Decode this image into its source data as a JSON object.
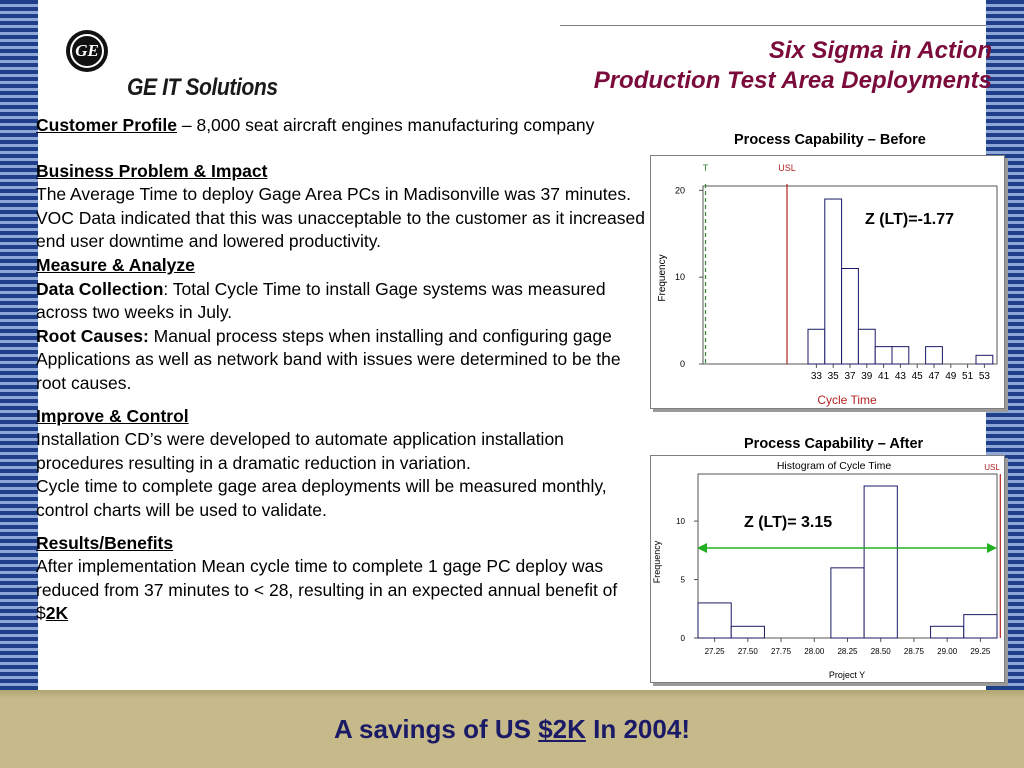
{
  "brand": "GE IT Solutions",
  "logo_text": "GE",
  "title": {
    "line1": "Six Sigma in Action",
    "line2": "Production Test Area Deployments"
  },
  "customer_profile": {
    "heading": "Customer Profile",
    "text": " – 8,000 seat aircraft engines manufacturing company"
  },
  "business_problem": {
    "heading": "Business Problem & Impact",
    "text": "The Average Time to deploy Gage Area PCs in Madisonville was 37 minutes. VOC Data indicated that this was unacceptable to the customer as it increased end user downtime and lowered productivity."
  },
  "measure": {
    "heading": "Measure & Analyze",
    "data_collection_label": "Data Collection",
    "data_collection_text": ": Total Cycle Time to install Gage systems was measured across two weeks in July.",
    "root_causes_label": "Root Causes:",
    "root_causes_text": " Manual process steps when installing and configuring gage Applications as well as network band with issues were determined to be the root causes."
  },
  "improve": {
    "heading": "Improve & Control",
    "text1": "Installation CD’s were developed to automate application installation procedures resulting in a dramatic reduction in variation.",
    "text2": "Cycle time to complete gage area deployments will be measured monthly, control charts will be used to validate."
  },
  "results": {
    "heading": "Results/Benefits",
    "text": "After implementation Mean cycle time to complete 1 gage PC deploy was reduced from 37 minutes to < 28, resulting in an expected annual benefit of $",
    "amount": "2K"
  },
  "banner": {
    "prefix": "A savings of US ",
    "amount": "$2K",
    "suffix": " In 2004!"
  },
  "colors": {
    "title": "#7a0b3a",
    "banner_text": "#1a1a66",
    "histogram_bar": "#1a1a66",
    "spec_line": "#b22222",
    "target_line": "#2e8b2e",
    "arrow": "#22b022",
    "bottom_band": "#c6b98a"
  },
  "chart_data": [
    {
      "type": "bar",
      "title": "Process Capability – Before",
      "xlabel": "Cycle Time",
      "ylabel": "Frequency",
      "x_ticks": [
        "33",
        "35",
        "37",
        "39",
        "41",
        "43",
        "45",
        "47",
        "49",
        "51",
        "53"
      ],
      "y_ticks": [
        "0",
        "10",
        "20"
      ],
      "bins": [
        {
          "from": 32,
          "to": 34,
          "count": 4
        },
        {
          "from": 34,
          "to": 36,
          "count": 19
        },
        {
          "from": 36,
          "to": 38,
          "count": 11
        },
        {
          "from": 38,
          "to": 40,
          "count": 4
        },
        {
          "from": 40,
          "to": 42,
          "count": 2
        },
        {
          "from": 42,
          "to": 44,
          "count": 2
        },
        {
          "from": 44,
          "to": 46,
          "count": 0
        },
        {
          "from": 46,
          "to": 48,
          "count": 2
        },
        {
          "from": 48,
          "to": 50,
          "count": 0
        },
        {
          "from": 50,
          "to": 52,
          "count": 0
        },
        {
          "from": 52,
          "to": 54,
          "count": 1
        }
      ],
      "xlim": [
        19.5,
        54.5
      ],
      "ylim": [
        0,
        20.5
      ],
      "target_label": "T",
      "target_x": 19.8,
      "usl_label": "USL",
      "usl_x": 29.5,
      "annotation": "Z (LT)=-1.77"
    },
    {
      "type": "bar",
      "title": "Process Capability – After",
      "subtitle": "Histogram of Cycle Time",
      "xlabel": "Project Y",
      "ylabel": "Frequency",
      "x_ticks": [
        "27.25",
        "27.50",
        "27.75",
        "28.00",
        "28.25",
        "28.50",
        "28.75",
        "29.00",
        "29.25"
      ],
      "y_ticks": [
        "0",
        "5",
        "10"
      ],
      "bins": [
        {
          "from": 27.125,
          "to": 27.375,
          "count": 3
        },
        {
          "from": 27.375,
          "to": 27.625,
          "count": 1
        },
        {
          "from": 27.625,
          "to": 27.875,
          "count": 0
        },
        {
          "from": 27.875,
          "to": 28.125,
          "count": 0
        },
        {
          "from": 28.125,
          "to": 28.375,
          "count": 6
        },
        {
          "from": 28.375,
          "to": 28.625,
          "count": 13
        },
        {
          "from": 28.625,
          "to": 28.875,
          "count": 0
        },
        {
          "from": 28.875,
          "to": 29.125,
          "count": 1
        },
        {
          "from": 29.125,
          "to": 29.375,
          "count": 2
        }
      ],
      "xlim": [
        27.125,
        29.375
      ],
      "ylim": [
        0,
        13
      ],
      "usl_label": "USL",
      "usl_x": 29.4,
      "annotation": "Z (LT)= 3.15"
    }
  ]
}
